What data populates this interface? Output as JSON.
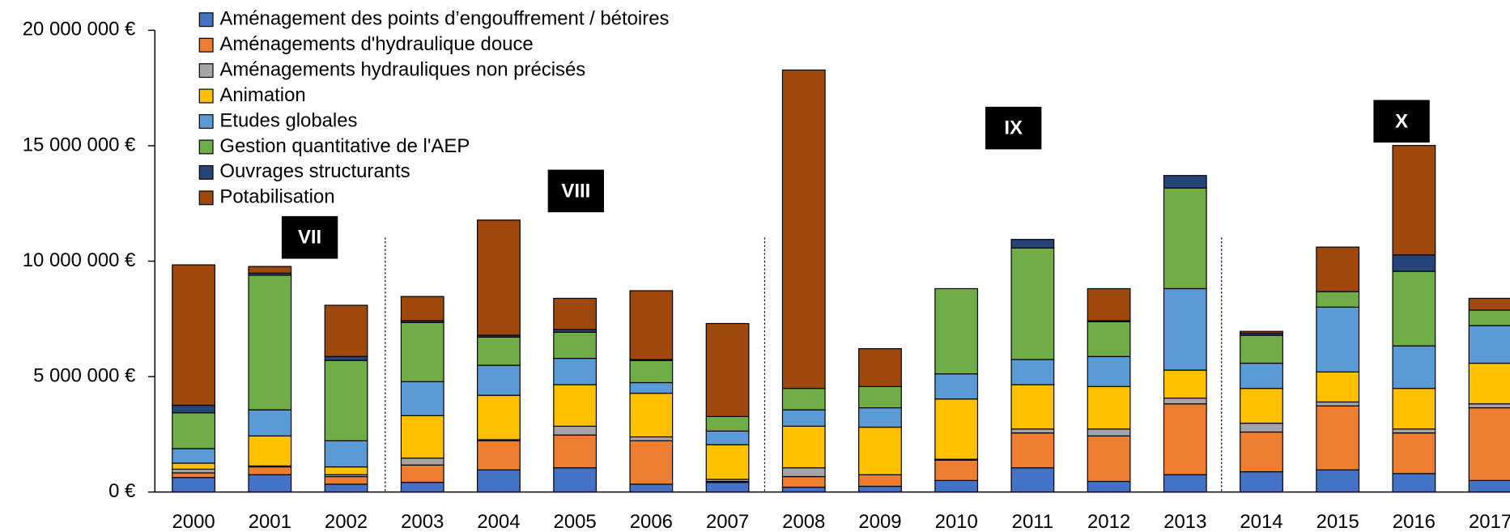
{
  "chart_data": {
    "type": "bar",
    "stacked": true,
    "categories": [
      "2000",
      "2001",
      "2002",
      "2003",
      "2004",
      "2005",
      "2006",
      "2007",
      "2008",
      "2009",
      "2010",
      "2011",
      "2012",
      "2013",
      "2014",
      "2015",
      "2016",
      "2017"
    ],
    "series": [
      {
        "name": "Aménagement des points d’engouffrement / bétoires",
        "color": "#4472c4",
        "values": [
          630000,
          750000,
          340000,
          420000,
          960000,
          1050000,
          340000,
          420000,
          210000,
          250000,
          500000,
          1050000,
          460000,
          750000,
          880000,
          960000,
          800000,
          500000
        ]
      },
      {
        "name": "Aménagements d'hydraulique douce",
        "color": "#ed7d31",
        "values": [
          200000,
          340000,
          330000,
          750000,
          1260000,
          1420000,
          1880000,
          40000,
          460000,
          500000,
          880000,
          1510000,
          1970000,
          3070000,
          1720000,
          2770000,
          1760000,
          3150000
        ]
      },
      {
        "name": "Aménagements hydrauliques non précisés",
        "color": "#a5a5a5",
        "values": [
          160000,
          40000,
          80000,
          300000,
          50000,
          380000,
          170000,
          90000,
          380000,
          0,
          40000,
          170000,
          300000,
          250000,
          380000,
          170000,
          170000,
          170000
        ]
      },
      {
        "name": "Animation",
        "color": "#ffc000",
        "values": [
          260000,
          1300000,
          340000,
          1840000,
          1920000,
          1800000,
          1890000,
          1500000,
          1800000,
          2060000,
          2610000,
          1920000,
          1840000,
          1210000,
          1510000,
          1300000,
          1760000,
          1760000
        ]
      },
      {
        "name": "Etudes globales",
        "color": "#5b9bd5",
        "values": [
          630000,
          1130000,
          1130000,
          1470000,
          1300000,
          1140000,
          460000,
          590000,
          710000,
          840000,
          1090000,
          1090000,
          1300000,
          3530000,
          1090000,
          2810000,
          1840000,
          1630000
        ]
      },
      {
        "name": "Gestion quantitative de l'AEP",
        "color": "#70ad47",
        "values": [
          1550000,
          5830000,
          3480000,
          2560000,
          1220000,
          1130000,
          960000,
          630000,
          930000,
          920000,
          3690000,
          4830000,
          1510000,
          4360000,
          1210000,
          670000,
          3230000,
          670000
        ]
      },
      {
        "name": "Ouvrages structurants",
        "color": "#264478",
        "values": [
          330000,
          90000,
          170000,
          80000,
          80000,
          120000,
          40000,
          0,
          0,
          0,
          0,
          370000,
          40000,
          540000,
          90000,
          0,
          710000,
          0
        ]
      },
      {
        "name": "Potabilisation",
        "color": "#9e480e",
        "values": [
          6080000,
          290000,
          2220000,
          1050000,
          4990000,
          1350000,
          2980000,
          4030000,
          13790000,
          1640000,
          0,
          0,
          1390000,
          0,
          80000,
          1930000,
          4740000,
          510000
        ]
      }
    ],
    "ylim": [
      0,
      20000000
    ],
    "yticks": [
      {
        "value": 0,
        "label": "0 €"
      },
      {
        "value": 5000000,
        "label": "5 000 000 €"
      },
      {
        "value": 10000000,
        "label": "10 000 000 €"
      },
      {
        "value": 15000000,
        "label": "15 000 000 €"
      },
      {
        "value": 20000000,
        "label": "20 000 000 €"
      }
    ],
    "annotations": [
      "VII",
      "VIII",
      "IX",
      "X"
    ],
    "legend": "top-left"
  }
}
